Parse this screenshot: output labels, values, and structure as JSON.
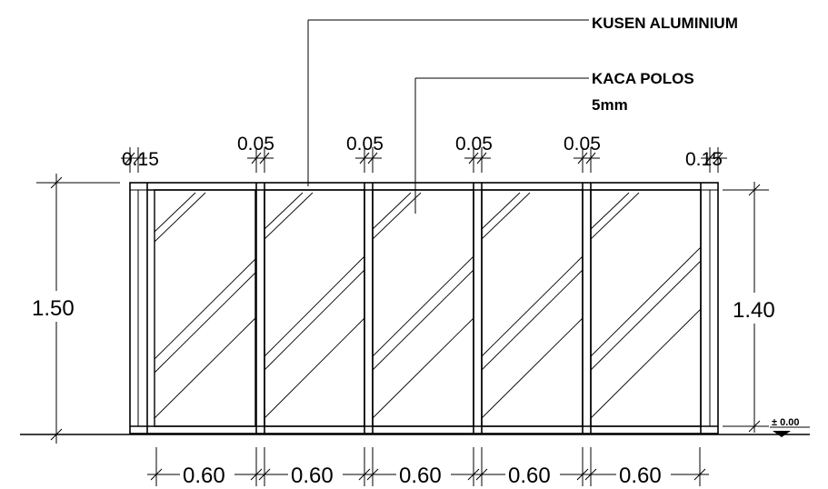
{
  "callouts": {
    "frame_label": "KUSEN ALUMINIUM",
    "glass_label_line1": "KACA POLOS",
    "glass_label_line2": "5mm"
  },
  "dimensions": {
    "end_frame_width": "0.15",
    "mullion_width": "0.05",
    "panel_width": "0.60",
    "total_height": "1.50",
    "glass_height": "1.40",
    "level": "± 0.00"
  }
}
